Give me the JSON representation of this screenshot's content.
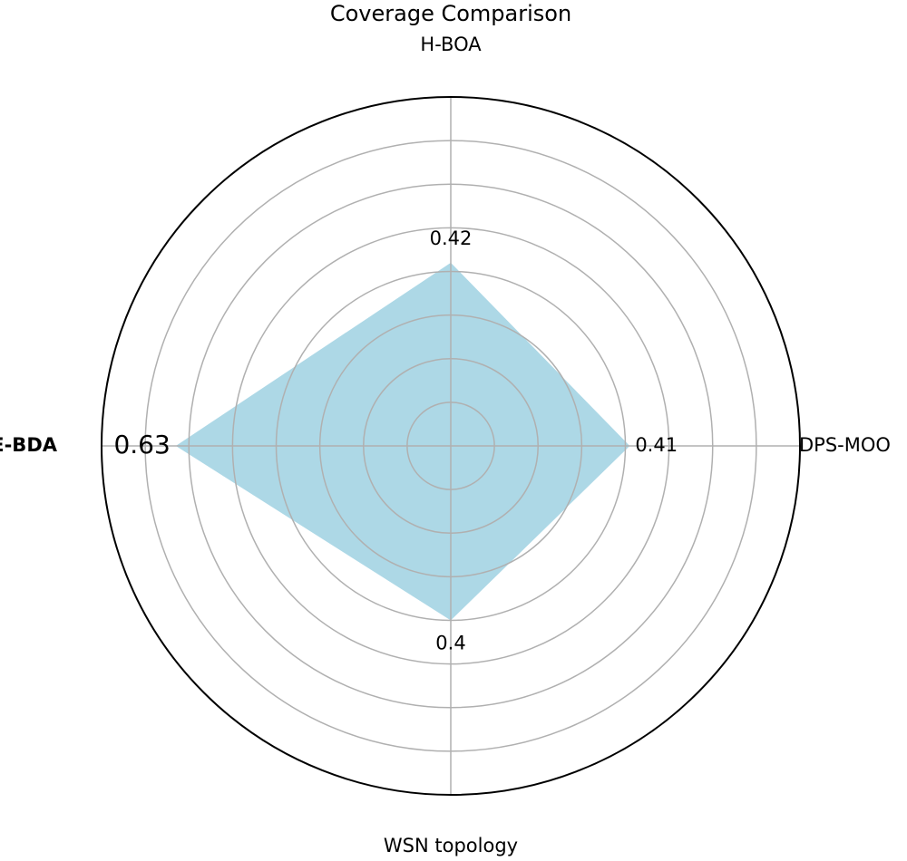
{
  "chart_data": {
    "type": "radar",
    "title": "Coverage Comparison",
    "categories": [
      "H-BOA",
      "DPS-MOO",
      "WSN topology",
      "DIE-BDA"
    ],
    "values": [
      0.42,
      0.41,
      0.4,
      0.63
    ],
    "color": "#add8e6",
    "highlight_index": 3,
    "ylim": [
      0,
      0.8
    ],
    "yticks": [
      0.1,
      0.2,
      0.3,
      0.4,
      0.5,
      0.6,
      0.7
    ],
    "grid": true
  }
}
